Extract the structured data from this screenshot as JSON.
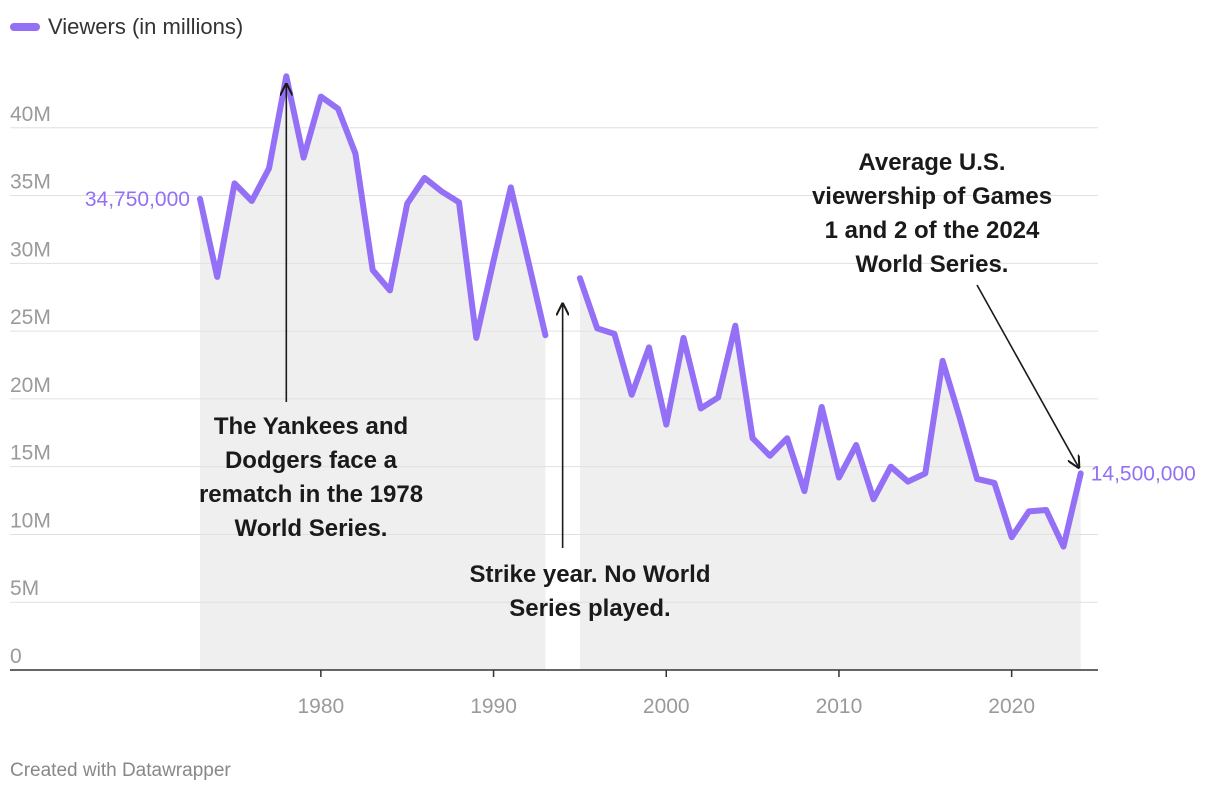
{
  "legend": {
    "label": "Viewers (in millions)"
  },
  "credit": "Created with Datawrapper",
  "colors": {
    "line": "#9370f6",
    "area": "#efefef",
    "grid": "#e0e0e0",
    "axis": "#333333",
    "tick": "#9a9a9a",
    "annotation": "#1a1a1a"
  },
  "chart_data": {
    "type": "area",
    "series": [
      {
        "name": "Viewers (in millions)",
        "x": [
          1973,
          1974,
          1975,
          1976,
          1977,
          1978,
          1979,
          1980,
          1981,
          1982,
          1983,
          1984,
          1985,
          1986,
          1987,
          1988,
          1989,
          1990,
          1991,
          1992,
          1993,
          1994,
          1995,
          1996,
          1997,
          1998,
          1999,
          2000,
          2001,
          2002,
          2003,
          2004,
          2005,
          2006,
          2007,
          2008,
          2009,
          2010,
          2011,
          2012,
          2013,
          2014,
          2015,
          2016,
          2017,
          2018,
          2019,
          2020,
          2021,
          2022,
          2023,
          2024
        ],
        "y": [
          34.75,
          29,
          35.9,
          34.6,
          37,
          43.8,
          37.8,
          42.3,
          41.4,
          38.1,
          29.5,
          28,
          34.4,
          36.3,
          35.3,
          34.5,
          24.5,
          30.2,
          35.6,
          30.2,
          24.7,
          null,
          28.9,
          25.2,
          24.8,
          20.3,
          23.8,
          18.1,
          24.5,
          19.3,
          20.1,
          25.4,
          17.1,
          15.8,
          17.1,
          13.2,
          19.4,
          14.2,
          16.6,
          12.6,
          15,
          13.9,
          14.5,
          22.8,
          18.6,
          14.1,
          13.8,
          9.8,
          11.7,
          11.8,
          9.1,
          14.5
        ]
      }
    ],
    "y_ticks": [
      "0",
      "5M",
      "10M",
      "15M",
      "20M",
      "25M",
      "30M",
      "35M",
      "40M"
    ],
    "y_tick_values": [
      0,
      5,
      10,
      15,
      20,
      25,
      30,
      35,
      40
    ],
    "x_ticks": [
      "1980",
      "1990",
      "2000",
      "2010",
      "2020"
    ],
    "x_tick_values": [
      1980,
      1990,
      2000,
      2010,
      2020
    ],
    "xlim": [
      1962,
      2025
    ],
    "ylim": [
      0,
      45
    ],
    "start_label": "34,750,000",
    "end_label": "14,500,000",
    "annotations": [
      {
        "lines": [
          "The Yankees and",
          "Dodgers face a",
          "rematch in the 1978",
          "World Series."
        ],
        "x": 1978,
        "y": 43.8
      },
      {
        "lines": [
          "Strike year. No World",
          "Series played."
        ],
        "x": 1994,
        "y": 27
      },
      {
        "lines": [
          "Average U.S.",
          "viewership of Games",
          "1 and 2 of the 2024",
          "World Series."
        ],
        "x": 2024,
        "y": 14.5
      }
    ]
  }
}
